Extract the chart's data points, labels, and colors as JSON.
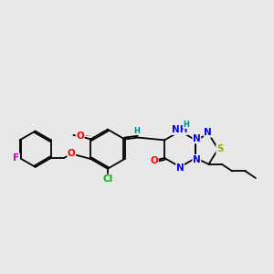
{
  "bg_color": "#e8e8e8",
  "bond_color": "#000000",
  "atom_colors": {
    "F": "#cc00cc",
    "O": "#ff0000",
    "Cl": "#00bb00",
    "N": "#0000ee",
    "S": "#aaaa00",
    "H": "#008888",
    "C": "#000000"
  },
  "font_size": 7.5,
  "lw": 1.3
}
